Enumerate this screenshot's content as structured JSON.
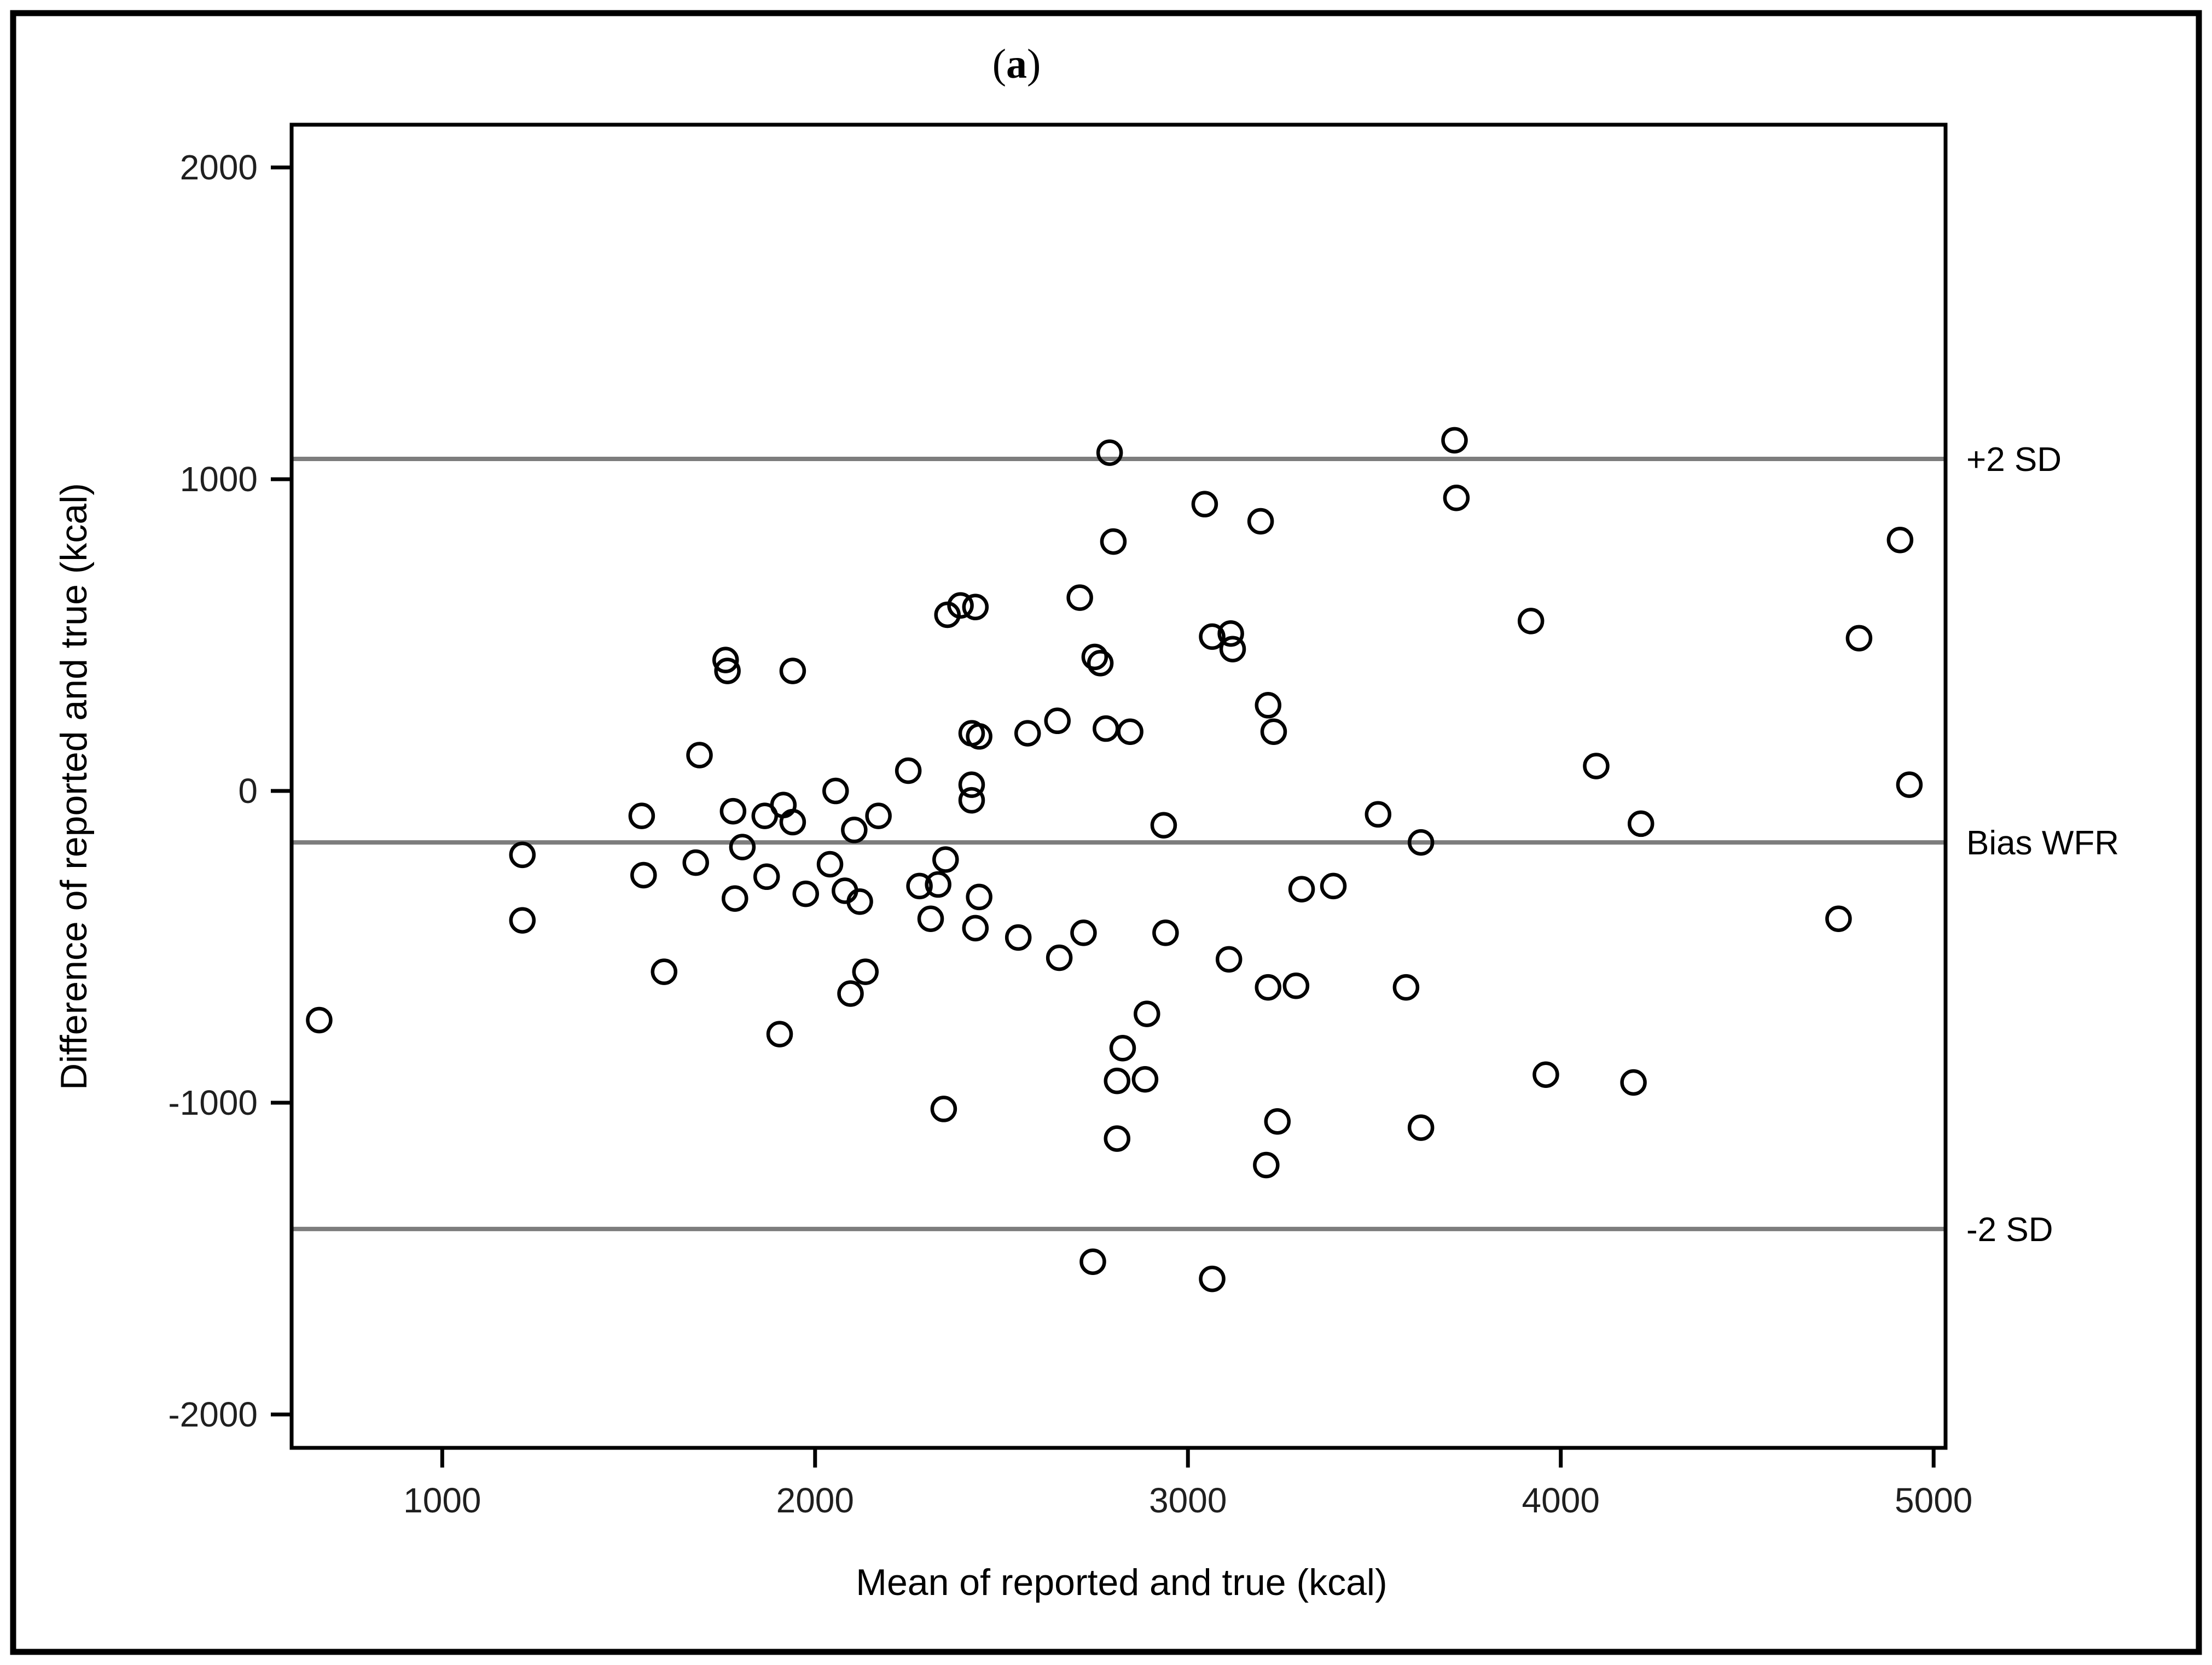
{
  "figure": {
    "panel_label": {
      "open": "(",
      "letter": "a",
      "close": ")"
    },
    "x_axis_title": "Mean of reported and true (kcal)",
    "y_axis_title": "Difference of reported and true (kcal)",
    "line_labels": {
      "upper": "+2 SD",
      "bias": "Bias WFR",
      "lower": "-2 SD"
    },
    "colors": {
      "marker_stroke": "#000000",
      "reference_line": "#7d7d7d",
      "axis_stroke": "#000000",
      "tick_text": "#1f1f1f",
      "frame": "#000000",
      "background": "#ffffff"
    }
  },
  "chart_data": {
    "type": "scatter",
    "title": "(a)",
    "xlabel": "Mean of reported and true (kcal)",
    "ylabel": "Difference of reported and true (kcal)",
    "xlim": [
      596,
      5032
    ],
    "ylim": [
      -2107,
      2137
    ],
    "x_ticks": [
      1000,
      2000,
      3000,
      4000,
      5000
    ],
    "y_ticks": [
      2000,
      1000,
      0,
      -1000,
      -2000
    ],
    "grid": false,
    "legend": "none",
    "marker": {
      "shape": "open-circle",
      "radius_px": 21,
      "stroke_px": 6.5
    },
    "reference_lines": [
      {
        "name": "plus_2sd",
        "label": "+2 SD",
        "value": 1065
      },
      {
        "name": "bias_wfr",
        "label": "Bias WFR",
        "value": -165
      },
      {
        "name": "minus_2sd",
        "label": "-2 SD",
        "value": -1405
      }
    ],
    "points": [
      [
        2790,
        1085
      ],
      [
        2800,
        800
      ],
      [
        2710,
        620
      ],
      [
        2355,
        565
      ],
      [
        2390,
        595
      ],
      [
        2430,
        590
      ],
      [
        1760,
        420
      ],
      [
        1765,
        385
      ],
      [
        1940,
        385
      ],
      [
        2750,
        430
      ],
      [
        2765,
        410
      ],
      [
        2650,
        225
      ],
      [
        3715,
        1125
      ],
      [
        3720,
        940
      ],
      [
        3045,
        920
      ],
      [
        3195,
        865
      ],
      [
        3065,
        495
      ],
      [
        3115,
        505
      ],
      [
        3120,
        455
      ],
      [
        3215,
        275
      ],
      [
        3230,
        190
      ],
      [
        3920,
        545
      ],
      [
        4910,
        805
      ],
      [
        4800,
        490
      ],
      [
        1690,
        115
      ],
      [
        1535,
        -80
      ],
      [
        1215,
        -205
      ],
      [
        1540,
        -270
      ],
      [
        1215,
        -415
      ],
      [
        1595,
        -580
      ],
      [
        670,
        -735
      ],
      [
        2420,
        185
      ],
      [
        2440,
        175
      ],
      [
        2570,
        185
      ],
      [
        2780,
        200
      ],
      [
        2845,
        190
      ],
      [
        2250,
        65
      ],
      [
        2055,
        0
      ],
      [
        2420,
        20
      ],
      [
        2420,
        -30
      ],
      [
        1780,
        -65
      ],
      [
        1865,
        -80
      ],
      [
        1915,
        -45
      ],
      [
        1940,
        -100
      ],
      [
        2105,
        -125
      ],
      [
        2170,
        -80
      ],
      [
        1805,
        -180
      ],
      [
        1680,
        -230
      ],
      [
        1870,
        -275
      ],
      [
        1785,
        -345
      ],
      [
        1975,
        -330
      ],
      [
        2040,
        -235
      ],
      [
        2080,
        -320
      ],
      [
        2120,
        -355
      ],
      [
        2135,
        -580
      ],
      [
        2095,
        -650
      ],
      [
        1905,
        -780
      ],
      [
        2350,
        -220
      ],
      [
        2280,
        -305
      ],
      [
        2330,
        -300
      ],
      [
        2440,
        -340
      ],
      [
        2310,
        -410
      ],
      [
        2430,
        -440
      ],
      [
        2545,
        -470
      ],
      [
        2655,
        -535
      ],
      [
        2720,
        -455
      ],
      [
        2935,
        -110
      ],
      [
        3510,
        -75
      ],
      [
        3625,
        -165
      ],
      [
        3390,
        -305
      ],
      [
        3305,
        -315
      ],
      [
        2940,
        -455
      ],
      [
        3110,
        -540
      ],
      [
        3215,
        -630
      ],
      [
        3290,
        -625
      ],
      [
        3585,
        -630
      ],
      [
        2890,
        -715
      ],
      [
        4095,
        80
      ],
      [
        4215,
        -105
      ],
      [
        4935,
        20
      ],
      [
        4745,
        -410
      ],
      [
        2345,
        -1020
      ],
      [
        2825,
        -825
      ],
      [
        2810,
        -930
      ],
      [
        2885,
        -925
      ],
      [
        2810,
        -1115
      ],
      [
        2745,
        -1510
      ],
      [
        3240,
        -1060
      ],
      [
        3210,
        -1200
      ],
      [
        3625,
        -1080
      ],
      [
        3960,
        -910
      ],
      [
        3065,
        -1565
      ],
      [
        4195,
        -935
      ]
    ]
  }
}
